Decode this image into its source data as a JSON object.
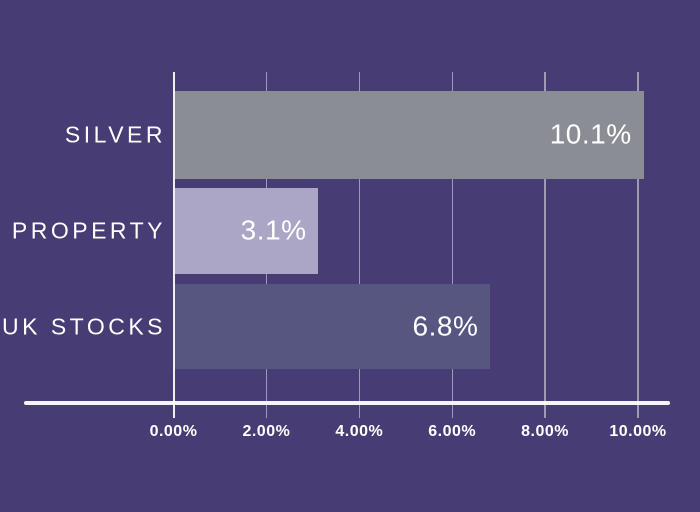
{
  "app": {
    "background_color": "#473D74",
    "text_color": "#FFFFFF",
    "gridline_color": "rgba(255,255,255,0.48)",
    "zero_line_color": "rgba(255,255,255,0.92)",
    "axis_line_color": "rgba(255,255,255,0.95)"
  },
  "chart_data": {
    "type": "bar",
    "orientation": "horizontal",
    "title": "",
    "xlabel": "",
    "ylabel": "",
    "categories": [
      "SILVER",
      "PROPERTY",
      "UK STOCKS"
    ],
    "values": [
      10.1,
      3.1,
      6.8
    ],
    "value_labels": [
      "10.1%",
      "3.1%",
      "6.8%"
    ],
    "bar_colors": [
      "#8B8D95",
      "#ABA5C6",
      "#575681"
    ],
    "xlim": [
      0,
      10
    ],
    "x_ticks": [
      0,
      2,
      4,
      6,
      8,
      10
    ],
    "x_tick_labels": [
      "0.00%",
      "2.00%",
      "4.00%",
      "6.00%",
      "8.00%",
      "10.00%"
    ],
    "grid": true,
    "legend": false
  }
}
